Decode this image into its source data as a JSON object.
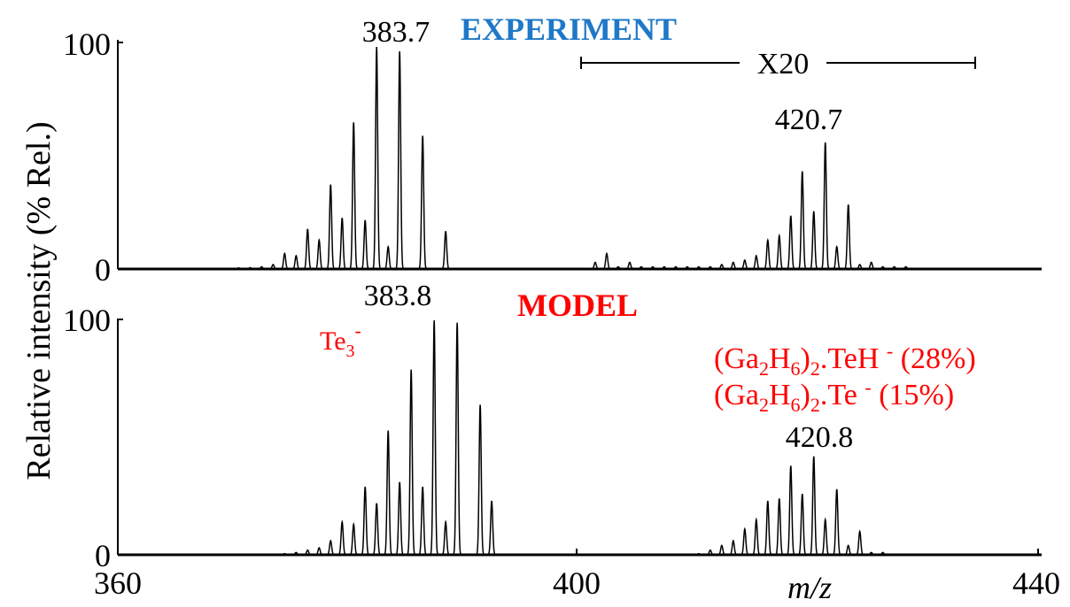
{
  "chart_data": {
    "type": "line",
    "xlabel": "m/z",
    "ylabel": "Relative intensity (% Rel.)",
    "xlim": [
      360,
      440
    ],
    "x_ticks": [
      "360",
      "400",
      "440"
    ],
    "grid": false,
    "panels": [
      {
        "title": "EXPERIMENT",
        "title_color": "#1f78c8",
        "ylim": [
          0,
          100
        ],
        "y_ticks": [
          "0",
          "100"
        ],
        "scale_bar": {
          "label": "X20",
          "x_range": [
            400,
            434
          ]
        },
        "peak_labels": [
          {
            "x": 383.7,
            "y": 100,
            "text": "383.7"
          },
          {
            "x": 420.7,
            "y": 57,
            "text": "420.7"
          }
        ],
        "series": [
          {
            "x": [
              370.5,
              371.5,
              372.5,
              373.5,
              374.5,
              375.5,
              376.5,
              377.5,
              378.5,
              379.5,
              380.5,
              381.5,
              382.5,
              383.5,
              384.5,
              385.5,
              386.5,
              387.5,
              388.5,
              389.5
            ],
            "y": [
              0.5,
              0.6,
              1,
              2,
              7,
              6,
              18,
              13,
              38,
              23,
              66,
              22,
              100,
              10,
              98,
              0,
              60,
              0,
              17,
              0
            ]
          },
          {
            "x": [
              401.5,
              402.5,
              403.5,
              404.5,
              405.5,
              406.5,
              407.5,
              408.5,
              409.5,
              410.5,
              411.5,
              412.5,
              413.5,
              414.5,
              415.5,
              416.5,
              417.5,
              418.5,
              419.5,
              420.5,
              421.5,
              422.5,
              423.5,
              424.5,
              425.5,
              426.5,
              427.5,
              428.5,
              429.5,
              435.5
            ],
            "y": [
              3,
              7,
              1,
              3,
              1,
              1,
              1,
              1,
              1,
              1,
              1,
              2,
              3,
              4,
              6,
              13,
              15,
              24,
              44,
              26,
              57,
              10,
              29,
              2,
              3,
              1,
              1,
              1,
              0.3,
              0.3
            ]
          }
        ]
      },
      {
        "title": "MODEL",
        "title_color": "#ff0000",
        "ylim": [
          0,
          100
        ],
        "y_ticks": [
          "0",
          "100"
        ],
        "annotations": [
          "Te3-",
          "(Ga2H6)2.TeH - (28%)",
          "(Ga2H6)2.Te - (15%)"
        ],
        "peak_labels": [
          {
            "x": 383.8,
            "y": 100,
            "text": "383.8"
          },
          {
            "x": 420.8,
            "y": 42,
            "text": "420.8"
          }
        ],
        "series": [
          {
            "x": [
              373.5,
              374.5,
              375.5,
              376.5,
              377.5,
              378.5,
              379.5,
              380.5,
              381.5,
              382.5,
              383.5,
              384.5,
              385.5,
              386.5,
              387.5,
              388.5,
              389.5,
              390.5,
              391.5,
              392.5
            ],
            "y": [
              0.3,
              0.5,
              1,
              2,
              3,
              6,
              14,
              13,
              29,
              22,
              53,
              31,
              79,
              29,
              100,
              14,
              99,
              0,
              64,
              23
            ]
          },
          {
            "x": [
              410.5,
              411.5,
              412.5,
              413.5,
              414.5,
              415.5,
              416.5,
              417.5,
              418.5,
              419.5,
              420.5,
              421.5,
              422.5,
              423.5,
              424.5,
              425.5,
              426.5,
              427.5,
              428.5
            ],
            "y": [
              0.5,
              2,
              4,
              6,
              11,
              15,
              23,
              24,
              38,
              26,
              42,
              15,
              28,
              4,
              10,
              1,
              1,
              0.3,
              0.3
            ]
          }
        ]
      }
    ]
  }
}
